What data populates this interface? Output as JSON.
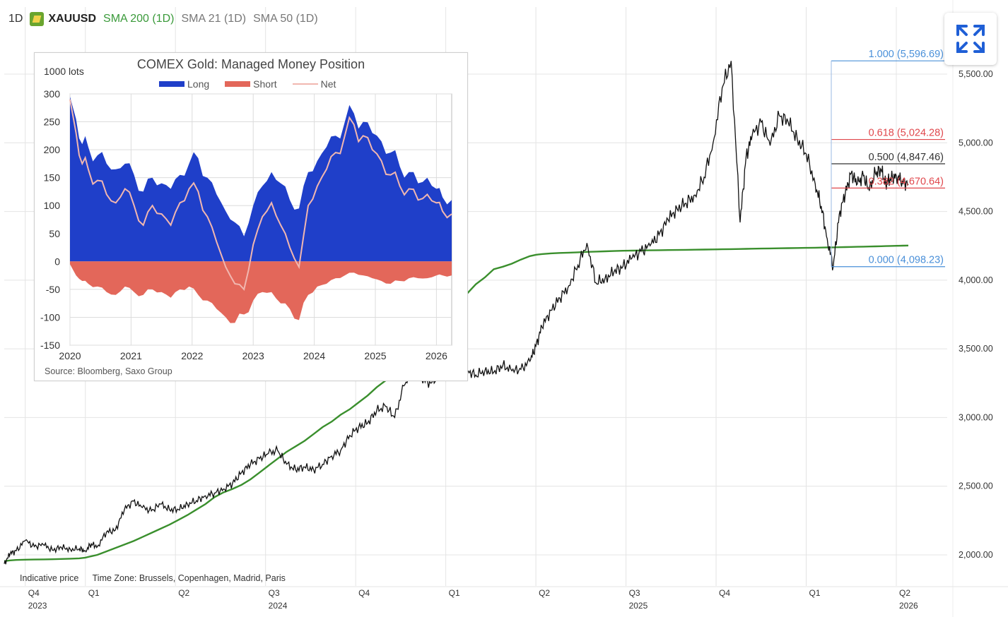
{
  "header": {
    "interval": "1D",
    "symbol": "XAUUSD",
    "indicators": [
      "SMA 200 (1D)",
      "SMA 21 (1D)",
      "SMA 50 (1D)"
    ]
  },
  "expand_button_icon": "expand-arrows-icon",
  "footer": {
    "price_note": "Indicative price",
    "timezone": "Time Zone: Brussels, Copenhagen, Madrid, Paris"
  },
  "main_chart": {
    "type": "line",
    "y_ticks": [
      "2,000.00",
      "2,500.00",
      "3,000.00",
      "3,500.00",
      "4,000.00",
      "4,500.00",
      "5,000.00",
      "5,500.00"
    ],
    "y_tick_values": [
      2000,
      2500,
      3000,
      3500,
      4000,
      4500,
      5000,
      5500
    ],
    "ylim": [
      1860,
      5960
    ],
    "x_ticks": [
      {
        "q": "Q4",
        "year": "2023",
        "month": 10.0
      },
      {
        "q": "Q1",
        "year": "",
        "month": 12.0
      },
      {
        "q": "Q2",
        "year": "",
        "month": 15.0
      },
      {
        "q": "Q3",
        "year": "2024",
        "month": 18.0
      },
      {
        "q": "Q4",
        "year": "",
        "month": 21.0
      },
      {
        "q": "Q1",
        "year": "",
        "month": 24.0
      },
      {
        "q": "Q2",
        "year": "",
        "month": 27.0
      },
      {
        "q": "Q3",
        "year": "2025",
        "month": 30.0
      },
      {
        "q": "Q4",
        "year": "",
        "month": 33.0
      },
      {
        "q": "Q1",
        "year": "",
        "month": 36.0
      },
      {
        "q": "Q2",
        "year": "2026",
        "month": 39.0
      }
    ],
    "series": [
      {
        "name": "XAUUSD",
        "color": "#111111",
        "x": [
          9.3,
          9.5,
          9.7,
          10.0,
          10.3,
          10.6,
          10.9,
          11.2,
          11.5,
          11.8,
          12.0,
          12.2,
          12.4,
          12.7,
          13.0,
          13.3,
          13.6,
          13.9,
          14.2,
          14.5,
          14.8,
          15.1,
          15.4,
          15.7,
          16.0,
          16.3,
          16.6,
          16.9,
          17.2,
          17.5,
          17.8,
          18.1,
          18.4,
          18.7,
          19.0,
          19.3,
          19.6,
          19.9,
          20.2,
          20.5,
          20.8,
          21.1,
          21.4,
          21.7,
          22.0,
          22.3,
          22.6,
          22.9,
          23.2,
          23.5,
          23.8,
          24.1,
          24.4,
          24.7,
          25.0,
          25.3,
          25.6,
          25.9,
          26.2,
          26.5,
          26.8,
          27.0,
          27.2,
          27.5,
          27.8,
          28.1,
          28.4,
          28.7,
          29.0,
          29.3,
          29.6,
          29.9,
          30.2,
          30.5,
          30.8,
          31.1,
          31.4,
          31.7,
          32.0,
          32.3,
          32.6,
          32.9,
          33.2,
          33.5,
          33.8,
          34.0,
          34.2,
          34.5,
          34.8,
          35.1,
          35.4,
          35.7,
          36.0,
          36.3,
          36.5,
          36.7,
          36.9,
          37.1,
          37.3,
          37.5,
          37.7,
          37.9,
          38.1,
          38.3,
          38.5,
          38.65,
          38.8,
          39.0,
          39.2,
          39.4
        ],
        "values": [
          1935,
          2010,
          2030,
          2105,
          2060,
          2075,
          2035,
          2055,
          2040,
          2045,
          2030,
          2080,
          2060,
          2165,
          2180,
          2330,
          2390,
          2345,
          2320,
          2370,
          2330,
          2330,
          2370,
          2395,
          2430,
          2450,
          2480,
          2520,
          2600,
          2660,
          2700,
          2740,
          2760,
          2660,
          2620,
          2640,
          2620,
          2660,
          2720,
          2760,
          2870,
          2930,
          2960,
          3050,
          3080,
          3000,
          3230,
          3330,
          3280,
          3250,
          3320,
          3360,
          3370,
          3340,
          3310,
          3340,
          3330,
          3380,
          3340,
          3350,
          3410,
          3520,
          3660,
          3780,
          3870,
          3960,
          4110,
          4270,
          3980,
          4010,
          4060,
          4100,
          4160,
          4210,
          4250,
          4330,
          4440,
          4520,
          4560,
          4620,
          4750,
          5000,
          5400,
          5596,
          4420,
          4900,
          5050,
          5150,
          4980,
          5200,
          5150,
          5030,
          4920,
          4700,
          4540,
          4300,
          4098,
          4480,
          4630,
          4780,
          4700,
          4760,
          4650,
          4780,
          4800,
          4700,
          4740,
          4760,
          4720,
          4700
        ],
        "sma": [
          1955,
          1960,
          1963,
          1965,
          1966,
          1967,
          1968,
          1970,
          1972,
          1975,
          1980,
          1990,
          2000,
          2025,
          2050,
          2075,
          2100,
          2130,
          2160,
          2190,
          2220,
          2255,
          2290,
          2330,
          2370,
          2420,
          2455,
          2480,
          2510,
          2550,
          2600,
          2650,
          2700,
          2750,
          2790,
          2830,
          2880,
          2930,
          2970,
          3020,
          3060,
          3110,
          3160,
          3220,
          3270,
          3330,
          3390,
          3440,
          3510,
          3580,
          3660,
          3740,
          3820,
          3900,
          3970,
          4020,
          4080,
          4098,
          4120,
          4150,
          4175,
          4185,
          4190,
          4195,
          4198,
          4200,
          4203,
          4206,
          4208,
          4210,
          4212,
          4214,
          4215,
          4216,
          4217,
          4218,
          4219,
          4220,
          4221,
          4222,
          4223,
          4224,
          4225,
          4226,
          4227,
          4228,
          4229,
          4230,
          4231,
          4232,
          4233,
          4234,
          4235,
          4236,
          4237,
          4238,
          4239,
          4240,
          4241,
          4242,
          4243,
          4244,
          4245,
          4246,
          4247,
          4248,
          4249,
          4250,
          4251,
          4252
        ]
      }
    ],
    "fibonacci": [
      {
        "ratio": "1.000",
        "price": "5,596.69",
        "value": 5596.69,
        "color": "#4a90d9"
      },
      {
        "ratio": "0.618",
        "price": "5,024.28",
        "value": 5024.28,
        "color": "#e0474c"
      },
      {
        "ratio": "0.500",
        "price": "4,847.46",
        "value": 4847.46,
        "color": "#333333"
      },
      {
        "ratio": "0.382",
        "price": "4,670.64",
        "value": 4670.64,
        "color": "#e0474c"
      },
      {
        "ratio": "0.000",
        "price": "4,098.23",
        "value": 4098.23,
        "color": "#4a90d9"
      }
    ]
  },
  "chart_data": {
    "type": "area",
    "title": "COMEX Gold: Managed Money Position",
    "ylabel": "1000 lots",
    "source": "Source: Bloomberg, Saxo Group",
    "ylim": [
      -150,
      300
    ],
    "y_ticks": [
      300,
      250,
      200,
      150,
      100,
      50,
      0,
      -50,
      -100,
      -150
    ],
    "x_ticks": [
      "2020",
      "2021",
      "2022",
      "2023",
      "2024",
      "2025",
      "2026"
    ],
    "xlim": [
      2020.0,
      2026.25
    ],
    "x": [
      2020.0,
      2020.1,
      2020.2,
      2020.3,
      2020.45,
      2020.6,
      2020.75,
      2020.9,
      2021.05,
      2021.2,
      2021.35,
      2021.5,
      2021.65,
      2021.8,
      2021.95,
      2022.1,
      2022.25,
      2022.4,
      2022.55,
      2022.7,
      2022.85,
      2023.0,
      2023.15,
      2023.3,
      2023.45,
      2023.6,
      2023.75,
      2023.9,
      2024.05,
      2024.2,
      2024.35,
      2024.5,
      2024.65,
      2024.8,
      2024.95,
      2025.1,
      2025.25,
      2025.4,
      2025.55,
      2025.7,
      2025.85,
      2026.0,
      2026.1,
      2026.25
    ],
    "series": [
      {
        "name": "Long",
        "color": "#1f3fc9",
        "values": [
          295,
          255,
          210,
          205,
          190,
          175,
          165,
          175,
          155,
          125,
          150,
          140,
          130,
          155,
          175,
          185,
          150,
          120,
          90,
          70,
          45,
          100,
          135,
          160,
          140,
          110,
          95,
          160,
          180,
          205,
          225,
          250,
          265,
          250,
          230,
          215,
          195,
          170,
          160,
          140,
          150,
          130,
          115,
          110
        ]
      },
      {
        "name": "Short",
        "color": "#e3675a",
        "values": [
          -5,
          -25,
          -35,
          -40,
          -45,
          -55,
          -60,
          -45,
          -55,
          -60,
          -50,
          -55,
          -65,
          -50,
          -45,
          -60,
          -70,
          -85,
          -100,
          -110,
          -95,
          -70,
          -55,
          -55,
          -75,
          -85,
          -105,
          -60,
          -45,
          -40,
          -30,
          -25,
          -20,
          -25,
          -30,
          -35,
          -40,
          -35,
          -30,
          -30,
          -30,
          -25,
          -25,
          -25
        ]
      },
      {
        "name": "Net",
        "color": "#f1b7b0",
        "values": [
          290,
          230,
          175,
          165,
          145,
          120,
          105,
          130,
          100,
          65,
          100,
          85,
          65,
          105,
          130,
          125,
          80,
          35,
          -10,
          -40,
          -50,
          30,
          80,
          105,
          65,
          25,
          -10,
          100,
          135,
          165,
          195,
          225,
          245,
          225,
          200,
          180,
          155,
          135,
          130,
          110,
          120,
          105,
          90,
          85
        ]
      }
    ]
  }
}
